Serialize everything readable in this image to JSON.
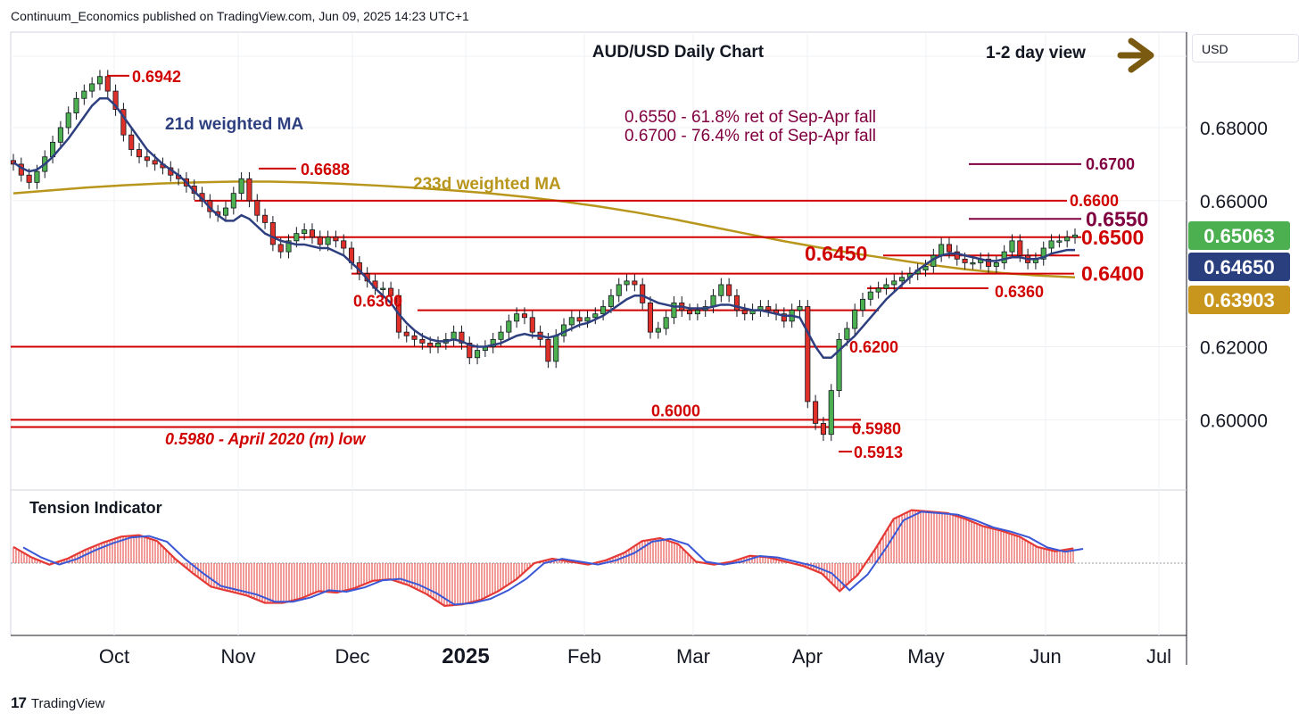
{
  "header": {
    "publisher_line": "Continuum_Economics published on TradingView.com, Jun 09, 2025 14:23 UTC+1",
    "currency": "USD",
    "footer_brand": "TradingView"
  },
  "chart_data": [
    {
      "type": "candlestick",
      "title": "AUD/USD Daily Chart",
      "view_note": "1-2 day view",
      "x_axis_labels": [
        "Oct",
        "Nov",
        "Dec",
        "2025",
        "Feb",
        "Mar",
        "Apr",
        "May",
        "Jun",
        "Jul"
      ],
      "y_ticks": [
        "0.68000",
        "0.66000",
        "0.62000",
        "0.60000"
      ],
      "ylim": [
        0.585,
        0.705
      ],
      "price_badges": [
        {
          "value": "0.65063",
          "color": "#4caf50"
        },
        {
          "value": "0.64650",
          "color": "#2a3f7e"
        },
        {
          "value": "0.63903",
          "color": "#c8961c"
        }
      ],
      "indicators": [
        {
          "name": "21d weighted MA",
          "color": "#2e3f80"
        },
        {
          "name": "233d weighted MA",
          "color": "#b8961c"
        }
      ],
      "fib_notes": [
        "0.6550 - 61.8% ret of Sep-Apr fall",
        "0.6700 - 76.4% ret of Sep-Apr fall"
      ],
      "levels": [
        {
          "label": "0.6700",
          "value": 0.67,
          "color": "#800040"
        },
        {
          "label": "0.6600",
          "value": 0.66,
          "color": "#d00000"
        },
        {
          "label": "0.6550",
          "value": 0.655,
          "color": "#800040"
        },
        {
          "label": "0.6500",
          "value": 0.65,
          "color": "#d00000"
        },
        {
          "label": "0.6450",
          "value": 0.645,
          "color": "#d00000"
        },
        {
          "label": "0.6400",
          "value": 0.64,
          "color": "#d00000"
        },
        {
          "label": "0.6360",
          "value": 0.636,
          "color": "#d00000"
        },
        {
          "label": "0.6300",
          "value": 0.63,
          "color": "#d00000"
        },
        {
          "label": "0.6200",
          "value": 0.62,
          "color": "#d00000"
        },
        {
          "label": "0.6000",
          "value": 0.6,
          "color": "#d00000"
        },
        {
          "label": "0.5980",
          "value": 0.598,
          "color": "#d00000"
        }
      ],
      "annotations": [
        "0.6942",
        "0.6688",
        "0.5913",
        "0.5980 - April 2020 (m) low"
      ],
      "close_series": [
        0.67,
        0.667,
        0.665,
        0.668,
        0.672,
        0.676,
        0.68,
        0.684,
        0.688,
        0.69,
        0.692,
        0.694,
        0.69,
        0.685,
        0.678,
        0.674,
        0.672,
        0.671,
        0.67,
        0.669,
        0.667,
        0.666,
        0.664,
        0.662,
        0.66,
        0.657,
        0.656,
        0.658,
        0.662,
        0.666,
        0.66,
        0.656,
        0.654,
        0.648,
        0.646,
        0.649,
        0.651,
        0.652,
        0.65,
        0.648,
        0.65,
        0.649,
        0.647,
        0.643,
        0.64,
        0.638,
        0.636,
        0.636,
        0.634,
        0.624,
        0.623,
        0.622,
        0.621,
        0.62,
        0.621,
        0.622,
        0.624,
        0.621,
        0.617,
        0.619,
        0.62,
        0.622,
        0.624,
        0.627,
        0.629,
        0.628,
        0.624,
        0.622,
        0.616,
        0.623,
        0.626,
        0.628,
        0.627,
        0.628,
        0.629,
        0.631,
        0.634,
        0.637,
        0.638,
        0.637,
        0.632,
        0.624,
        0.625,
        0.628,
        0.632,
        0.63,
        0.629,
        0.63,
        0.631,
        0.634,
        0.637,
        0.634,
        0.63,
        0.629,
        0.63,
        0.631,
        0.63,
        0.629,
        0.627,
        0.63,
        0.631,
        0.605,
        0.599,
        0.596,
        0.608,
        0.622,
        0.625,
        0.63,
        0.633,
        0.635,
        0.636,
        0.637,
        0.638,
        0.639,
        0.64,
        0.641,
        0.642,
        0.645,
        0.648,
        0.646,
        0.644,
        0.643,
        0.643,
        0.644,
        0.642,
        0.643,
        0.646,
        0.649,
        0.645,
        0.643,
        0.644,
        0.647,
        0.649,
        0.649,
        0.65,
        0.6506
      ],
      "ma21_series": [
        0.6705,
        0.669,
        0.668,
        0.6685,
        0.67,
        0.672,
        0.6745,
        0.677,
        0.68,
        0.683,
        0.686,
        0.688,
        0.688,
        0.686,
        0.683,
        0.68,
        0.677,
        0.674,
        0.672,
        0.67,
        0.6685,
        0.667,
        0.665,
        0.6625,
        0.6605,
        0.658,
        0.656,
        0.6545,
        0.6545,
        0.656,
        0.655,
        0.653,
        0.651,
        0.65,
        0.649,
        0.6485,
        0.648,
        0.648,
        0.6475,
        0.647,
        0.647,
        0.646,
        0.645,
        0.643,
        0.641,
        0.6385,
        0.636,
        0.634,
        0.632,
        0.629,
        0.6265,
        0.6245,
        0.623,
        0.622,
        0.6215,
        0.6215,
        0.622,
        0.6215,
        0.6205,
        0.62,
        0.62,
        0.6205,
        0.621,
        0.622,
        0.623,
        0.6235,
        0.623,
        0.623,
        0.6225,
        0.623,
        0.624,
        0.625,
        0.626,
        0.6265,
        0.6275,
        0.6285,
        0.63,
        0.6315,
        0.633,
        0.634,
        0.634,
        0.633,
        0.632,
        0.6315,
        0.631,
        0.631,
        0.6305,
        0.6305,
        0.6305,
        0.631,
        0.6315,
        0.6315,
        0.631,
        0.6305,
        0.63,
        0.63,
        0.6295,
        0.629,
        0.6285,
        0.6285,
        0.628,
        0.624,
        0.62,
        0.617,
        0.617,
        0.619,
        0.621,
        0.623,
        0.6255,
        0.628,
        0.6305,
        0.633,
        0.635,
        0.637,
        0.639,
        0.641,
        0.6425,
        0.644,
        0.645,
        0.6455,
        0.6455,
        0.645,
        0.6445,
        0.644,
        0.6435,
        0.6435,
        0.644,
        0.6445,
        0.6445,
        0.644,
        0.644,
        0.6445,
        0.6455,
        0.646,
        0.6465,
        0.6465
      ],
      "ma233_series": [
        0.662,
        0.6628,
        0.6636,
        0.6642,
        0.6647,
        0.665,
        0.6652,
        0.6652,
        0.665,
        0.6646,
        0.6641,
        0.6635,
        0.6628,
        0.662,
        0.661,
        0.6598,
        0.6584,
        0.6568,
        0.655,
        0.653,
        0.651,
        0.649,
        0.6472,
        0.6455,
        0.644,
        0.6425,
        0.6412,
        0.6402,
        0.6395,
        0.639
      ],
      "panels": [
        {
          "name": "Tension Indicator",
          "type": "oscillator_histogram"
        }
      ],
      "tension_series": [
        0.55,
        0.2,
        -0.05,
        0.15,
        0.45,
        0.7,
        0.9,
        0.95,
        0.75,
        0.15,
        -0.35,
        -0.8,
        -0.95,
        -1.1,
        -1.35,
        -1.35,
        -1.2,
        -0.95,
        -1.0,
        -0.85,
        -0.6,
        -0.55,
        -0.75,
        -1.05,
        -1.45,
        -1.4,
        -1.25,
        -0.95,
        -0.55,
        0.0,
        0.15,
        0.05,
        -0.05,
        0.1,
        0.35,
        0.75,
        0.85,
        0.65,
        0.05,
        -0.05,
        0.05,
        0.25,
        0.2,
        0.05,
        -0.1,
        -0.35,
        -0.95,
        -0.4,
        0.5,
        1.5,
        1.8,
        1.75,
        1.7,
        1.5,
        1.25,
        1.1,
        0.9,
        0.55,
        0.4,
        0.5
      ]
    }
  ]
}
